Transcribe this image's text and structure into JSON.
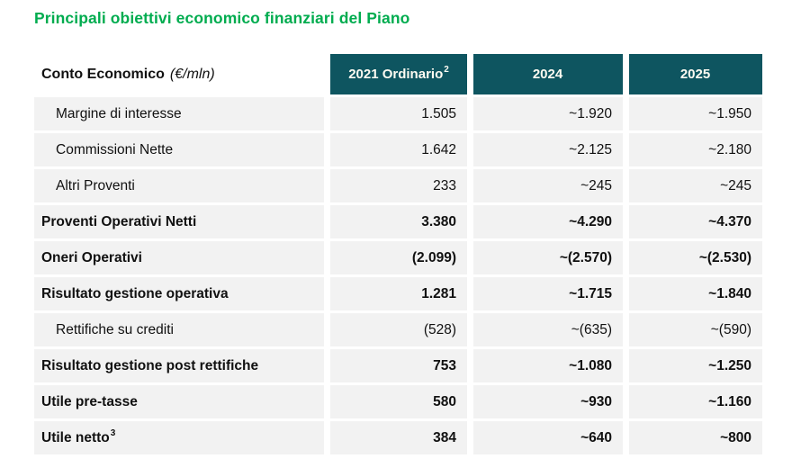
{
  "page_title": "Principali obiettivi economico finanziari del Piano",
  "colors": {
    "title_green": "#00AC4F",
    "header_teal": "#0E5560",
    "row_gray": "#F2F2F2",
    "header_text": "#FDFBF2",
    "text_black": "#111111"
  },
  "table": {
    "header": {
      "label_bold": "Conto Economico",
      "label_unit": "(€/mln)",
      "columns": [
        {
          "label": "2021 Ordinario",
          "superscript": "2"
        },
        {
          "label": "2024",
          "superscript": ""
        },
        {
          "label": "2025",
          "superscript": ""
        }
      ]
    },
    "rows": [
      {
        "label": "Margine di interesse",
        "superscript": "",
        "bold": false,
        "indent": true,
        "values": [
          "1.505",
          "~1.920",
          "~1.950"
        ]
      },
      {
        "label": "Commissioni Nette",
        "superscript": "",
        "bold": false,
        "indent": true,
        "values": [
          "1.642",
          "~2.125",
          "~2.180"
        ]
      },
      {
        "label": "Altri Proventi",
        "superscript": "",
        "bold": false,
        "indent": true,
        "values": [
          "233",
          "~245",
          "~245"
        ]
      },
      {
        "label": "Proventi Operativi Netti",
        "superscript": "",
        "bold": true,
        "indent": false,
        "values": [
          "3.380",
          "~4.290",
          "~4.370"
        ]
      },
      {
        "label": "Oneri Operativi",
        "superscript": "",
        "bold": true,
        "indent": false,
        "values": [
          "(2.099)",
          "~(2.570)",
          "~(2.530)"
        ]
      },
      {
        "label": "Risultato gestione operativa",
        "superscript": "",
        "bold": true,
        "indent": false,
        "values": [
          "1.281",
          "~1.715",
          "~1.840"
        ]
      },
      {
        "label": "Rettifiche su crediti",
        "superscript": "",
        "bold": false,
        "indent": true,
        "values": [
          "(528)",
          "~(635)",
          "~(590)"
        ]
      },
      {
        "label": "Risultato gestione post rettifiche",
        "superscript": "",
        "bold": true,
        "indent": false,
        "values": [
          "753",
          "~1.080",
          "~1.250"
        ]
      },
      {
        "label": "Utile pre-tasse",
        "superscript": "",
        "bold": true,
        "indent": false,
        "values": [
          "580",
          "~930",
          "~1.160"
        ]
      },
      {
        "label": "Utile netto",
        "superscript": "3",
        "bold": true,
        "indent": false,
        "values": [
          "384",
          "~640",
          "~800"
        ]
      }
    ]
  }
}
